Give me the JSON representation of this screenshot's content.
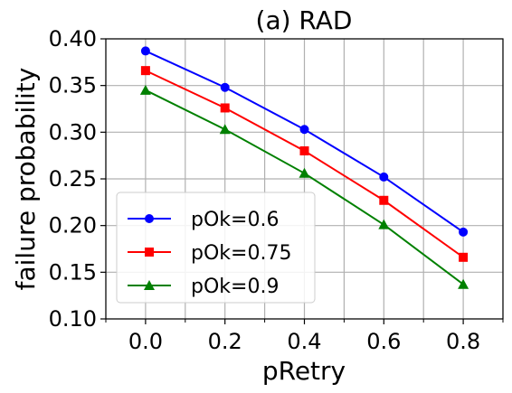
{
  "chart_data": {
    "type": "line",
    "title": "(a) RAD",
    "xlabel": "pRetry",
    "ylabel": "failure probability",
    "x": [
      0.0,
      0.2,
      0.4,
      0.6,
      0.8
    ],
    "xlim": [
      -0.1,
      0.9
    ],
    "ylim": [
      0.1,
      0.4
    ],
    "xticks": [
      0.0,
      0.2,
      0.4,
      0.6,
      0.8
    ],
    "xtick_labels": [
      "0.0",
      "0.2",
      "0.4",
      "0.6",
      "0.8"
    ],
    "yticks": [
      0.1,
      0.15,
      0.2,
      0.25,
      0.3,
      0.35,
      0.4
    ],
    "ytick_labels": [
      "0.10",
      "0.15",
      "0.20",
      "0.25",
      "0.30",
      "0.35",
      "0.40"
    ],
    "grid": true,
    "legend_position": "lower-left",
    "series": [
      {
        "name": "pOk=0.6",
        "values": [
          0.387,
          0.348,
          0.303,
          0.252,
          0.193
        ],
        "color": "#0000ff",
        "marker": "circle"
      },
      {
        "name": "pOk=0.75",
        "values": [
          0.366,
          0.326,
          0.28,
          0.227,
          0.166
        ],
        "color": "#ff0000",
        "marker": "square"
      },
      {
        "name": "pOk=0.9",
        "values": [
          0.345,
          0.303,
          0.256,
          0.201,
          0.137
        ],
        "color": "#008000",
        "marker": "triangle"
      }
    ]
  }
}
